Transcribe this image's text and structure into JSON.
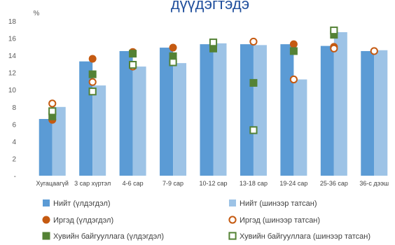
{
  "chart_data": {
    "type": "bar",
    "title": "дүүдэгтэдэ",
    "y_unit": "%",
    "ylim": [
      0,
      18
    ],
    "yticks": [
      "-",
      "2",
      "4",
      "6",
      "8",
      "10",
      "12",
      "14",
      "16",
      "18"
    ],
    "grid": false,
    "legend_position": "bottom",
    "categories": [
      "Хугацаагүй",
      "3 сар хүртэл",
      "4-6 сар",
      "7-9 сар",
      "10-12 сар",
      "13-18 сар",
      "19-24 сар",
      "25-36 сар",
      "36-с дээш"
    ],
    "series": [
      {
        "name": "Нийт (үлдэгдэл)",
        "kind": "bar",
        "color": "#5b9bd5",
        "values": [
          6.6,
          13.3,
          14.5,
          14.9,
          15.3,
          15.3,
          15.3,
          15.1,
          14.5
        ]
      },
      {
        "name": "Нийт (шинээр татсан)",
        "kind": "bar",
        "color": "#9dc3e6",
        "values": [
          8.0,
          10.5,
          12.7,
          13.1,
          15.4,
          15.2,
          11.2,
          16.7,
          14.6
        ]
      },
      {
        "name": "Иргэд (үлдэгдэл)",
        "kind": "marker",
        "shape": "circle-filled",
        "color": "#c55a11",
        "values": [
          6.5,
          13.6,
          14.4,
          14.9,
          null,
          null,
          15.3,
          15.0,
          null
        ]
      },
      {
        "name": "Иргэд (шинээр татсан)",
        "kind": "marker",
        "shape": "circle-hollow",
        "color": "#c55a11",
        "values": [
          8.4,
          10.9,
          12.7,
          13.3,
          null,
          15.6,
          11.2,
          14.8,
          14.5
        ]
      },
      {
        "name": "Хувийн байгууллага (үлдэгдэл)",
        "kind": "marker",
        "shape": "square-filled",
        "color": "#548235",
        "values": [
          6.9,
          11.8,
          14.2,
          13.9,
          14.8,
          10.8,
          14.5,
          16.4,
          null
        ]
      },
      {
        "name": "Хувийн байгууллага (шинээр татсан)",
        "kind": "marker",
        "shape": "square-hollow",
        "color": "#548235",
        "values": [
          7.5,
          9.8,
          12.9,
          13.2,
          15.5,
          5.3,
          null,
          16.9,
          null
        ]
      }
    ]
  }
}
